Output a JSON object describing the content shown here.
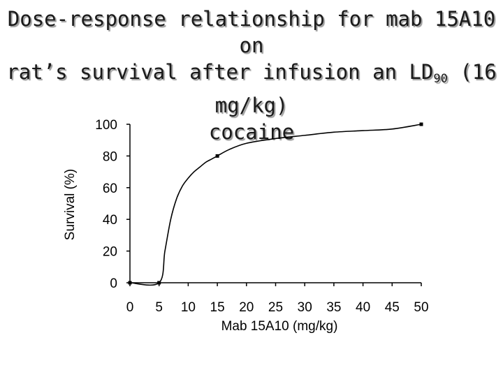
{
  "slide": {
    "title_line1": "Dose-response relationship for mab 15A10 on",
    "title_line2_a": "rat’s survival after infusion an LD",
    "title_line2_sub": "90",
    "title_line2_b": " (16 mg/kg)",
    "title_line3": "cocaine"
  },
  "chart_data": {
    "type": "line",
    "title": "",
    "xlabel": "Mab 15A10 (mg/kg)",
    "ylabel": "Survival (%)",
    "xlim": [
      0,
      50
    ],
    "ylim": [
      0,
      100
    ],
    "x_ticks": [
      0,
      5,
      10,
      15,
      20,
      25,
      30,
      35,
      40,
      45,
      50
    ],
    "y_ticks": [
      0,
      20,
      40,
      60,
      80,
      100
    ],
    "grid": false,
    "series": [
      {
        "marker_points": {
          "x": [
            0,
            5,
            15,
            50
          ],
          "y": [
            0,
            0,
            80,
            100
          ]
        },
        "fitted_curve": {
          "x": [
            0,
            5,
            6,
            7,
            8,
            9,
            10,
            11,
            12,
            13,
            14,
            15,
            17,
            20,
            25,
            30,
            35,
            40,
            45,
            50
          ],
          "y": [
            0,
            0,
            20,
            40,
            53,
            61,
            66,
            70,
            73,
            76,
            78,
            80,
            84,
            88,
            91,
            93,
            95,
            96,
            97,
            100
          ]
        }
      }
    ],
    "colors": {
      "line": "#000000",
      "marker": "#000000"
    }
  }
}
